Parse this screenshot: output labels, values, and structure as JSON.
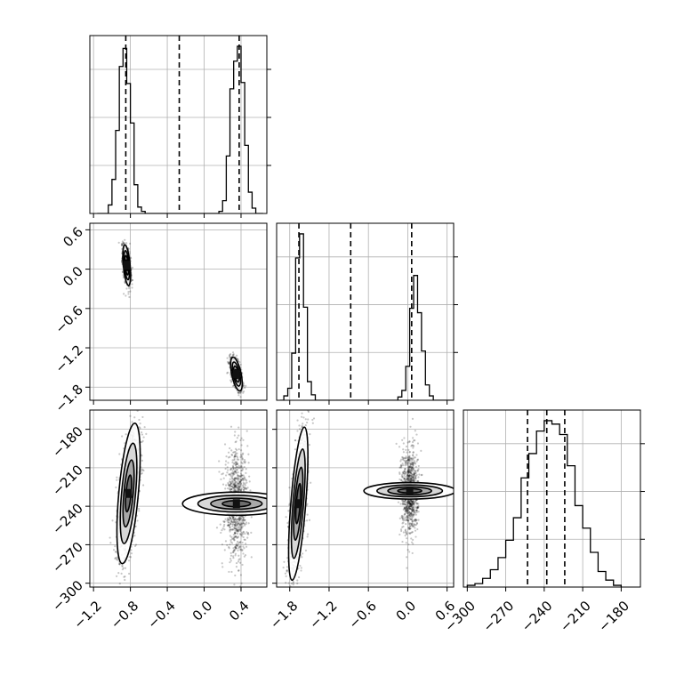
{
  "chart_data": {
    "type": "corner",
    "parameters": [
      {
        "ticks": [
          -1.2,
          -0.8,
          -0.4,
          0.0,
          0.4
        ],
        "tick_labels": [
          "−1.2",
          "−0.8",
          "−0.4",
          "0.0",
          "0.4"
        ],
        "range": [
          -1.24,
          0.68
        ]
      },
      {
        "ticks": [
          -1.8,
          -1.2,
          -0.6,
          0.0,
          0.6
        ],
        "tick_labels": [
          "−1.8",
          "−1.2",
          "−0.6",
          "0.0",
          "0.6"
        ],
        "range": [
          -2.0,
          0.7
        ]
      },
      {
        "ticks": [
          -300,
          -270,
          -240,
          -210,
          -180
        ],
        "tick_labels": [
          "−300",
          "−270",
          "−240",
          "−210",
          "−180"
        ],
        "range": [
          -303,
          -165
        ]
      }
    ],
    "histograms": [
      {
        "param": 0,
        "edges": [
          -1.16,
          -1.12,
          -1.08,
          -1.04,
          -1.0,
          -0.96,
          -0.92,
          -0.88,
          -0.84,
          -0.8,
          -0.76,
          -0.72,
          -0.68,
          -0.64,
          -0.6,
          -0.56,
          -0.52,
          -0.48,
          -0.44,
          -0.4,
          -0.36,
          -0.32,
          -0.28,
          -0.24,
          -0.2,
          -0.16,
          -0.12,
          -0.08,
          -0.04,
          0.0,
          0.04,
          0.08,
          0.12,
          0.16,
          0.2,
          0.24,
          0.28,
          0.32,
          0.36,
          0.4,
          0.44,
          0.48,
          0.52,
          0.56,
          0.6,
          0.64
        ],
        "counts": [
          0,
          0,
          0,
          8,
          32,
          78,
          138,
          155,
          122,
          85,
          27,
          6,
          2,
          0,
          0,
          0,
          0,
          0,
          0,
          0,
          0,
          0,
          0,
          0,
          0,
          0,
          0,
          0,
          0,
          0,
          0,
          0,
          0,
          2,
          12,
          54,
          117,
          143,
          157,
          123,
          64,
          20,
          5,
          0,
          0
        ],
        "quantiles": [
          -0.85,
          -0.27,
          0.38
        ]
      },
      {
        "param": 1,
        "edges": [
          -1.95,
          -1.89,
          -1.83,
          -1.77,
          -1.71,
          -1.65,
          -1.59,
          -1.53,
          -1.47,
          -1.41,
          -1.35,
          -1.29,
          -1.23,
          -1.17,
          -1.11,
          -1.05,
          -0.99,
          -0.93,
          -0.87,
          -0.81,
          -0.75,
          -0.69,
          -0.63,
          -0.57,
          -0.51,
          -0.45,
          -0.39,
          -0.33,
          -0.27,
          -0.21,
          -0.15,
          -0.09,
          -0.03,
          0.03,
          0.09,
          0.15,
          0.21,
          0.27,
          0.33,
          0.39,
          0.45,
          0.51,
          0.57,
          0.63,
          0.69
        ],
        "counts": [
          0,
          4,
          11,
          43,
          130,
          152,
          85,
          17,
          5,
          0,
          0,
          0,
          0,
          0,
          0,
          0,
          0,
          0,
          0,
          0,
          0,
          0,
          0,
          0,
          0,
          0,
          0,
          0,
          0,
          0,
          3,
          9,
          31,
          84,
          114,
          80,
          45,
          14,
          4,
          0,
          0,
          0,
          0,
          0
        ],
        "quantiles": [
          -1.66,
          -0.87,
          0.06
        ]
      },
      {
        "param": 2,
        "edges": [
          -300,
          -294,
          -288,
          -282,
          -276,
          -270,
          -264,
          -258,
          -252,
          -246,
          -240,
          -234,
          -228,
          -222,
          -216,
          -210,
          -204,
          -198,
          -192,
          -186,
          -180
        ],
        "counts": [
          1,
          2,
          5,
          10,
          17,
          27,
          40,
          63,
          77,
          90,
          96,
          94,
          88,
          70,
          47,
          34,
          20,
          9,
          4,
          1
        ],
        "quantiles": [
          -253,
          -238,
          -224
        ]
      }
    ],
    "scatter_panels": [
      {
        "x_param": 0,
        "y_param": 1,
        "modes": [
          {
            "x": [
              -0.84,
              0.02,
              0.05
            ],
            "y": [
              0.06,
              -0.07,
              0.13
            ]
          },
          {
            "x": [
              0.35,
              0.03,
              0.07
            ],
            "y": [
              -1.6,
              -0.07,
              0.1
            ]
          }
        ]
      },
      {
        "x_param": 0,
        "y_param": 2,
        "modes": [
          {
            "x": [
              -0.82,
              0.06,
              0.08
            ],
            "y": [
              -230,
              14,
              22
            ]
          },
          {
            "x": [
              0.35,
              0.06,
              0.08
            ],
            "y": [
              -238,
              0,
              20
            ]
          }
        ]
      },
      {
        "x_param": 1,
        "y_param": 2,
        "modes": [
          {
            "x": [
              -1.67,
              0.07,
              0.1
            ],
            "y": [
              -238,
              18,
              22
            ]
          },
          {
            "x": [
              0.03,
              0.06,
              0.09
            ],
            "y": [
              -228,
              0,
              17
            ]
          }
        ]
      }
    ]
  }
}
